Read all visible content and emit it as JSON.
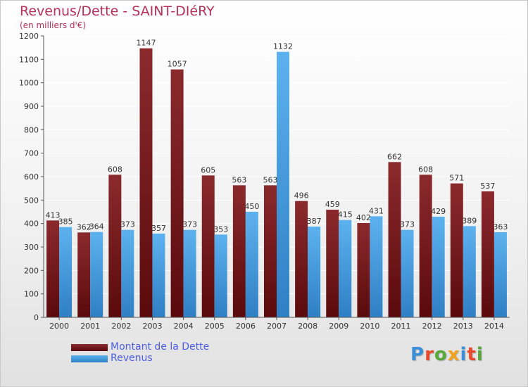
{
  "colors": {
    "title": "#b5305a",
    "dette_top": "#8b2a2d",
    "dette_bottom": "#5a0a0c",
    "revenus_top": "#5cb2ee",
    "revenus_bottom": "#2f7fc4",
    "legend_text": "#4d5ee0"
  },
  "logo": {
    "text": "Proxiti",
    "letter_colors": [
      "#3a8fd8",
      "#e8482c",
      "#59a83a",
      "#f2a21c",
      "#3a8fd8",
      "#e8482c",
      "#59a83a"
    ]
  },
  "chart_data": {
    "type": "bar",
    "title": "Revenus/Dette - SAINT-DIéRY",
    "subtitle": "(en milliers d'€)",
    "categories": [
      "2000",
      "2001",
      "2002",
      "2003",
      "2004",
      "2005",
      "2006",
      "2007",
      "2008",
      "2009",
      "2010",
      "2011",
      "2012",
      "2013",
      "2014"
    ],
    "series": [
      {
        "name": "Montant de la Dette",
        "values": [
          413,
          362,
          608,
          1147,
          1057,
          605,
          563,
          563,
          496,
          459,
          402,
          662,
          608,
          571,
          537
        ]
      },
      {
        "name": "Revenus",
        "values": [
          385,
          364,
          373,
          357,
          373,
          353,
          450,
          1132,
          387,
          415,
          431,
          373,
          429,
          389,
          363
        ]
      }
    ],
    "ylim": [
      0,
      1200
    ],
    "yticks": [
      0,
      100,
      200,
      300,
      400,
      500,
      600,
      700,
      800,
      900,
      1000,
      1100,
      1200
    ],
    "grid": true,
    "legend": "bottom-left"
  }
}
